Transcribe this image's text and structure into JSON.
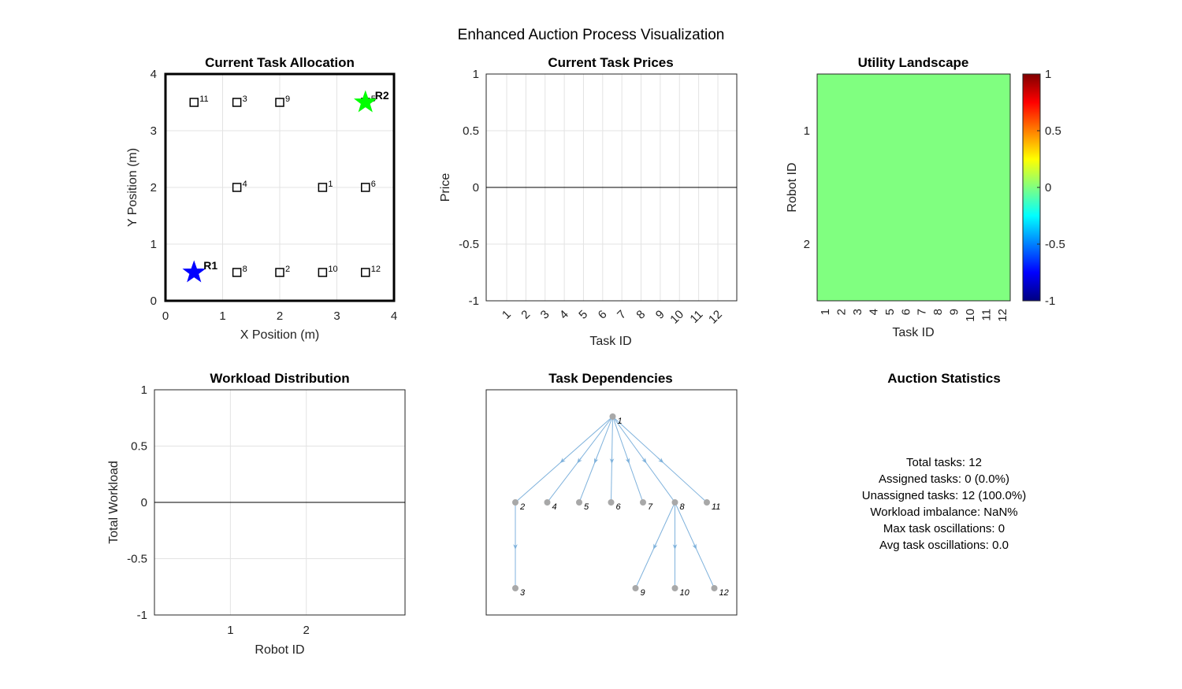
{
  "figure": {
    "title": "Enhanced Auction Process Visualization"
  },
  "chart_data": [
    {
      "id": "allocation",
      "type": "scatter",
      "title": "Current Task Allocation",
      "xlabel": "X Position (m)",
      "ylabel": "Y Position (m)",
      "xlim": [
        0,
        4
      ],
      "ylim": [
        0,
        4
      ],
      "xticks": [
        0,
        1,
        2,
        3,
        4
      ],
      "yticks": [
        0,
        1,
        2,
        3,
        4
      ],
      "grid": true,
      "tasks": [
        {
          "id": "1",
          "x": 2.75,
          "y": 2.0
        },
        {
          "id": "2",
          "x": 2.0,
          "y": 0.5
        },
        {
          "id": "3",
          "x": 1.25,
          "y": 3.5
        },
        {
          "id": "4",
          "x": 1.25,
          "y": 2.0
        },
        {
          "id": "5",
          "x": 3.5,
          "y": 3.5
        },
        {
          "id": "6",
          "x": 3.5,
          "y": 2.0
        },
        {
          "id": "8",
          "x": 1.25,
          "y": 0.5
        },
        {
          "id": "9",
          "x": 2.0,
          "y": 3.5
        },
        {
          "id": "10",
          "x": 2.75,
          "y": 0.5
        },
        {
          "id": "11",
          "x": 0.5,
          "y": 3.5
        },
        {
          "id": "12",
          "x": 3.5,
          "y": 0.5
        }
      ],
      "robots": [
        {
          "label": "R1",
          "x": 0.5,
          "y": 0.5,
          "color": "#0000ff"
        },
        {
          "label": "R2",
          "x": 3.5,
          "y": 3.5,
          "color": "#00ff00"
        }
      ]
    },
    {
      "id": "prices",
      "type": "line",
      "title": "Current Task Prices",
      "xlabel": "Task ID",
      "ylabel": "Price",
      "categories": [
        "1",
        "2",
        "3",
        "4",
        "5",
        "6",
        "7",
        "8",
        "9",
        "10",
        "11",
        "12"
      ],
      "values": [
        0,
        0,
        0,
        0,
        0,
        0,
        0,
        0,
        0,
        0,
        0,
        0
      ],
      "ylim": [
        -1,
        1
      ],
      "yticks": [
        "-1",
        "-0.5",
        "0",
        "0.5",
        "1"
      ],
      "grid": true
    },
    {
      "id": "utility",
      "type": "heatmap",
      "title": "Utility Landscape",
      "xlabel": "Task ID",
      "ylabel": "Robot ID",
      "x": [
        "1",
        "2",
        "3",
        "4",
        "5",
        "6",
        "7",
        "8",
        "9",
        "10",
        "11",
        "12"
      ],
      "y": [
        "1",
        "2"
      ],
      "values": [
        [
          0,
          0,
          0,
          0,
          0,
          0,
          0,
          0,
          0,
          0,
          0,
          0
        ],
        [
          0,
          0,
          0,
          0,
          0,
          0,
          0,
          0,
          0,
          0,
          0,
          0
        ]
      ],
      "clim": [
        -1,
        1
      ],
      "colorbar_ticks": [
        "-1",
        "-0.5",
        "0",
        "0.5",
        "1"
      ],
      "cell_color": "#80ff80"
    },
    {
      "id": "workload",
      "type": "bar",
      "title": "Workload Distribution",
      "xlabel": "Robot ID",
      "ylabel": "Total Workload",
      "categories": [
        "1",
        "2"
      ],
      "values": [
        0,
        0
      ],
      "ylim": [
        -1,
        1
      ],
      "yticks": [
        "-1",
        "-0.5",
        "0",
        "0.5",
        "1"
      ],
      "grid": true
    },
    {
      "id": "dependencies",
      "type": "graph",
      "title": "Task Dependencies",
      "nodes": [
        "1",
        "2",
        "3",
        "4",
        "5",
        "6",
        "7",
        "8",
        "9",
        "10",
        "11",
        "12"
      ],
      "edges": [
        [
          "1",
          "2"
        ],
        [
          "1",
          "4"
        ],
        [
          "1",
          "5"
        ],
        [
          "1",
          "6"
        ],
        [
          "1",
          "7"
        ],
        [
          "1",
          "8"
        ],
        [
          "1",
          "11"
        ],
        [
          "2",
          "3"
        ],
        [
          "8",
          "9"
        ],
        [
          "8",
          "10"
        ],
        [
          "8",
          "12"
        ]
      ],
      "edge_color": "#7fb2dc",
      "node_color": "#a8a8a8"
    }
  ],
  "stats": {
    "title": "Auction Statistics",
    "lines": [
      "Total tasks: 12",
      "Assigned tasks: 0 (0.0%)",
      "Unassigned tasks: 12 (100.0%)",
      "Workload imbalance: NaN%",
      "Max task oscillations: 0",
      "Avg task oscillations: 0.0"
    ]
  }
}
